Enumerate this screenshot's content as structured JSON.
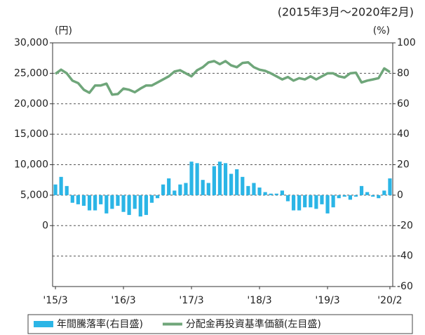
{
  "chart_data": {
    "type": "bar-line",
    "subtitle": "(2015年3月～2020年2月)",
    "y_label": "(円)",
    "y2_label": "(%)",
    "categories": [
      "'15/3",
      null,
      null,
      null,
      null,
      null,
      null,
      null,
      null,
      null,
      null,
      null,
      "'16/3",
      null,
      null,
      null,
      null,
      null,
      null,
      null,
      null,
      null,
      null,
      null,
      "'17/3",
      null,
      null,
      null,
      null,
      null,
      null,
      null,
      null,
      null,
      null,
      null,
      "'18/3",
      null,
      null,
      null,
      null,
      null,
      null,
      null,
      null,
      null,
      null,
      null,
      "'19/3",
      null,
      null,
      null,
      null,
      null,
      null,
      null,
      null,
      null,
      null,
      "'20/2"
    ],
    "series": [
      {
        "name": "年間騰落率(右目盛)",
        "type": "bar",
        "axis": "y2",
        "color": "#2bb5e6",
        "values": [
          7,
          12,
          6,
          -5,
          -6,
          -7,
          -10,
          -10,
          -6,
          -12,
          -9,
          -7,
          -11,
          -13,
          -9,
          -14,
          -13,
          -5,
          -2,
          7,
          11,
          3,
          7,
          8,
          22,
          21,
          10,
          8,
          19,
          22,
          21,
          14,
          17,
          12,
          6,
          8,
          5,
          2,
          1,
          1,
          3,
          -4,
          -10,
          -10,
          -8,
          -8,
          -9,
          -6,
          -12,
          -8,
          -2,
          -1,
          -3,
          -1,
          6,
          2,
          -1,
          -2,
          3,
          11
        ]
      },
      {
        "name": "分配金再投資基準価額(左目盛)",
        "type": "line",
        "axis": "y",
        "color": "#6fa67a",
        "values": [
          24900,
          25600,
          25000,
          23800,
          23400,
          22300,
          21800,
          23000,
          23000,
          23300,
          21500,
          21600,
          22500,
          22300,
          21900,
          22500,
          23000,
          23000,
          23500,
          24000,
          24500,
          25300,
          25500,
          25000,
          24500,
          25500,
          26000,
          26800,
          27000,
          26500,
          27000,
          26300,
          26000,
          26700,
          26800,
          26000,
          25600,
          25400,
          25000,
          24500,
          24000,
          24400,
          23800,
          24200,
          24000,
          24500,
          24000,
          24500,
          25000,
          25000,
          24500,
          24300,
          25000,
          25100,
          23500,
          23800,
          24000,
          24200,
          25800,
          25200
        ]
      }
    ],
    "ylim": [
      -10000,
      30000
    ],
    "yticks": [
      0,
      {
        "value": 5000,
        "label": "5,000"
      },
      {
        "value": 10000,
        "label": "10,000"
      },
      {
        "value": 15000,
        "label": "15,000"
      },
      {
        "value": 20000,
        "label": "20,000"
      },
      {
        "value": 25000,
        "label": "25,000"
      },
      {
        "value": 30000,
        "label": "30,000"
      }
    ],
    "y2lim": [
      -60,
      100
    ],
    "y2ticks": [
      -60,
      -40,
      -20,
      0,
      20,
      40,
      60,
      80,
      100
    ],
    "grid": true
  }
}
